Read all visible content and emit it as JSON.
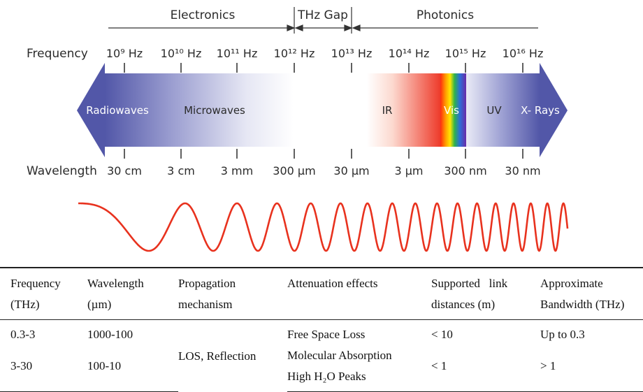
{
  "spectrum": {
    "regions": [
      "Electronics",
      "THz Gap",
      "Photonics"
    ],
    "row_labels": {
      "frequency": "Frequency",
      "wavelength": "Wavelength"
    },
    "frequency_ticks": [
      "10⁹ Hz",
      "10¹⁰ Hz",
      "10¹¹ Hz",
      "10¹² Hz",
      "10¹³ Hz",
      "10¹⁴ Hz",
      "10¹⁵ Hz",
      "10¹⁶ Hz"
    ],
    "wavelength_ticks": [
      "30 cm",
      "3 cm",
      "3 mm",
      "300 µm",
      "30 µm",
      "3 µm",
      "300 nm",
      "30 nm"
    ],
    "bands": [
      "Radiowaves",
      "Microwaves",
      "IR",
      "Vis",
      "UV",
      "X- Rays"
    ],
    "colors": {
      "arrow_blue": "#5b5fae",
      "ir_red": "#ee3b2b",
      "wave_red": "#e8321e",
      "text": "#2b2b2b"
    }
  },
  "table": {
    "headers": [
      [
        "Frequency",
        "(THz)"
      ],
      [
        "Wavelength",
        "(µm)"
      ],
      [
        "Propagation",
        "mechanism"
      ],
      [
        "Attenuation effects"
      ],
      [
        "Supported   link",
        "distances (m)"
      ],
      [
        "Approximate",
        "Bandwidth (THz)"
      ]
    ],
    "rows": [
      {
        "frequency": "0.3-3",
        "wavelength": "1000-100",
        "attenuation": "Free Space Loss",
        "distance": "< 10",
        "bandwidth": "Up to 0.3"
      },
      {
        "frequency": "3-30",
        "wavelength": "100-10",
        "attenuation": "Molecular Absorption",
        "attenuation_2": "High H₂O Peaks",
        "distance": "< 1",
        "bandwidth": "> 1"
      }
    ],
    "propagation": "LOS, Reflection"
  }
}
